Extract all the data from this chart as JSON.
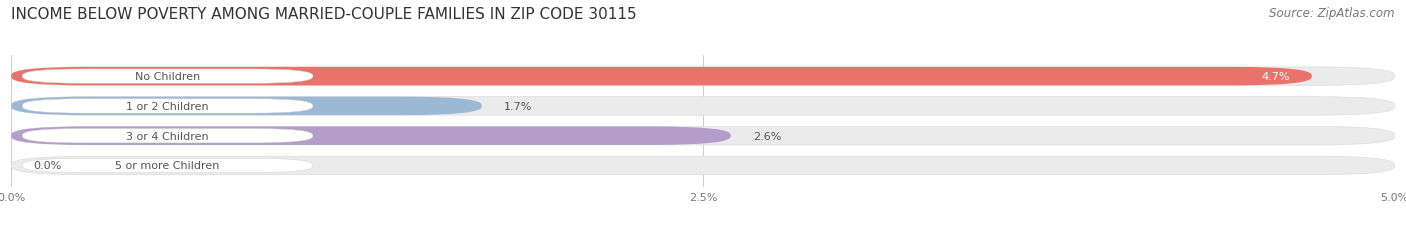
{
  "title": "INCOME BELOW POVERTY AMONG MARRIED-COUPLE FAMILIES IN ZIP CODE 30115",
  "source": "Source: ZipAtlas.com",
  "categories": [
    "No Children",
    "1 or 2 Children",
    "3 or 4 Children",
    "5 or more Children"
  ],
  "values": [
    4.7,
    1.7,
    2.6,
    0.0
  ],
  "bar_colors": [
    "#E8736A",
    "#9BB8D4",
    "#B49DC8",
    "#6DCDD4"
  ],
  "value_label_inside": [
    true,
    false,
    false,
    false
  ],
  "xlim": [
    0,
    5.0
  ],
  "xticks": [
    0.0,
    2.5,
    5.0
  ],
  "xtick_labels": [
    "0.0%",
    "2.5%",
    "5.0%"
  ],
  "title_fontsize": 11,
  "source_fontsize": 8.5,
  "cat_fontsize": 8,
  "val_fontsize": 8,
  "bar_height": 0.62,
  "background_color": "#ffffff",
  "bar_bg_color": "#ebebeb",
  "label_bg_color": "#ffffff",
  "label_text_color": "#555555",
  "value_inside_color": "#ffffff",
  "value_outside_color": "#555555"
}
